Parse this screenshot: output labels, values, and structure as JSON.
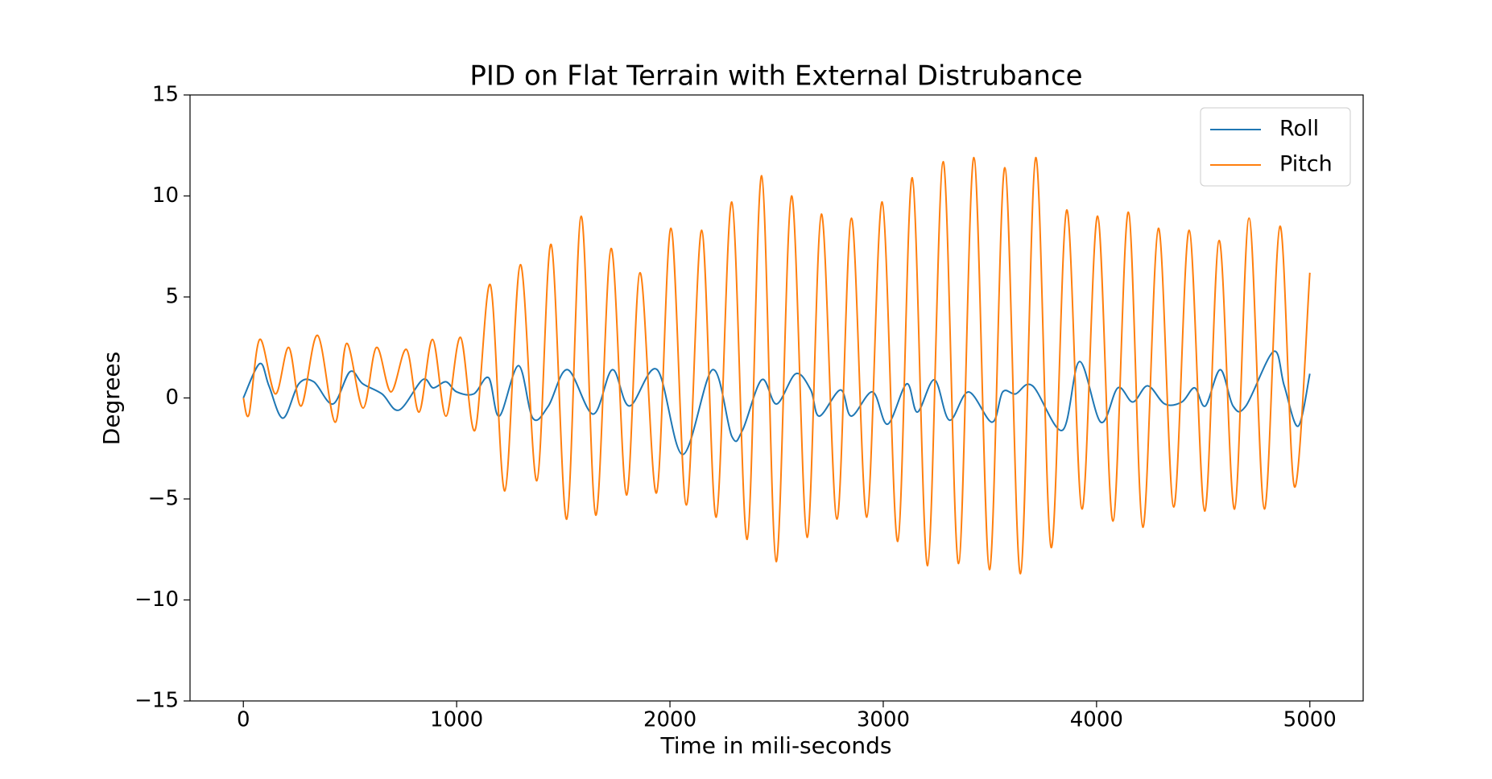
{
  "chart_data": {
    "type": "line",
    "title": "PID on Flat Terrain with External Distrubance",
    "x_label": "Time in mili-seconds",
    "y_label": "Degrees",
    "xlim": [
      -250,
      5250
    ],
    "ylim": [
      -15,
      15
    ],
    "xticks": [
      0,
      1000,
      2000,
      3000,
      4000,
      5000
    ],
    "yticks": [
      -15,
      -10,
      -5,
      0,
      5,
      10,
      15
    ],
    "grid": false,
    "legend": "upper right",
    "series": [
      {
        "name": "Roll",
        "color": "#1f77b4",
        "x": [
          0,
          77,
          120,
          186,
          260,
          330,
          420,
          500,
          560,
          650,
          730,
          840,
          890,
          950,
          1000,
          1080,
          1150,
          1200,
          1290,
          1357,
          1430,
          1520,
          1640,
          1730,
          1810,
          1940,
          2060,
          2200,
          2290,
          2340,
          2430,
          2500,
          2590,
          2660,
          2700,
          2800,
          2850,
          2950,
          3020,
          3110,
          3160,
          3240,
          3310,
          3400,
          3510,
          3560,
          3620,
          3700,
          3840,
          3920,
          4020,
          4100,
          4170,
          4240,
          4320,
          4400,
          4460,
          4510,
          4580,
          4640,
          4700,
          4830,
          4880,
          4945,
          5000
        ],
        "values": [
          0,
          1.7,
          0.6,
          -1.0,
          0.7,
          0.8,
          -0.3,
          1.3,
          0.7,
          0.2,
          -0.6,
          0.9,
          0.5,
          0.8,
          0.3,
          0.2,
          1.0,
          -0.9,
          1.6,
          -1.0,
          -0.4,
          1.4,
          -0.8,
          1.4,
          -0.4,
          1.4,
          -2.8,
          1.4,
          -1.9,
          -1.6,
          0.9,
          -0.3,
          1.2,
          0.4,
          -0.9,
          0.4,
          -0.9,
          0.3,
          -1.3,
          0.7,
          -0.7,
          0.9,
          -1.1,
          0.3,
          -1.2,
          0.3,
          0.2,
          0.6,
          -1.6,
          1.8,
          -1.2,
          0.5,
          -0.2,
          0.6,
          -0.3,
          -0.2,
          0.5,
          -0.4,
          1.4,
          -0.4,
          -0.4,
          2.3,
          0.6,
          -1.4,
          1.2
        ]
      },
      {
        "name": "Pitch",
        "color": "#ff7f0e",
        "x": [
          0,
          27,
          77,
          150,
          213,
          271,
          348,
          430,
          484,
          561,
          624,
          692,
          765,
          824,
          887,
          950,
          1018,
          1086,
          1158,
          1226,
          1299,
          1376,
          1443,
          1516,
          1584,
          1652,
          1724,
          1796,
          1860,
          1937,
          2005,
          2077,
          2149,
          2217,
          2290,
          2362,
          2430,
          2498,
          2570,
          2643,
          2710,
          2783,
          2851,
          2923,
          2995,
          3068,
          3136,
          3208,
          3281,
          3353,
          3425,
          3498,
          3570,
          3643,
          3715,
          3787,
          3860,
          3932,
          4005,
          4077,
          4149,
          4217,
          4290,
          4362,
          4434,
          4507,
          4575,
          4647,
          4715,
          4787,
          4860,
          4928,
          5000
        ],
        "values": [
          0,
          -0.8,
          2.9,
          0.2,
          2.5,
          -0.4,
          3.1,
          -1.2,
          2.7,
          -0.5,
          2.5,
          0.3,
          2.4,
          -0.7,
          2.9,
          -0.9,
          3.0,
          -1.6,
          5.6,
          -4.6,
          6.6,
          -4.1,
          7.6,
          -6.0,
          9.0,
          -5.8,
          7.4,
          -4.8,
          6.2,
          -4.7,
          8.4,
          -5.3,
          8.3,
          -5.9,
          9.7,
          -7.0,
          11.0,
          -8.1,
          10.0,
          -6.9,
          9.1,
          -6.0,
          8.9,
          -5.9,
          9.7,
          -7.1,
          10.9,
          -8.3,
          11.7,
          -8.2,
          11.9,
          -8.5,
          11.4,
          -8.7,
          11.9,
          -7.4,
          9.3,
          -5.5,
          9.0,
          -6.1,
          9.2,
          -6.4,
          8.4,
          -5.4,
          8.3,
          -5.6,
          7.8,
          -5.5,
          8.9,
          -5.5,
          8.5,
          -4.4,
          6.2
        ]
      }
    ]
  }
}
